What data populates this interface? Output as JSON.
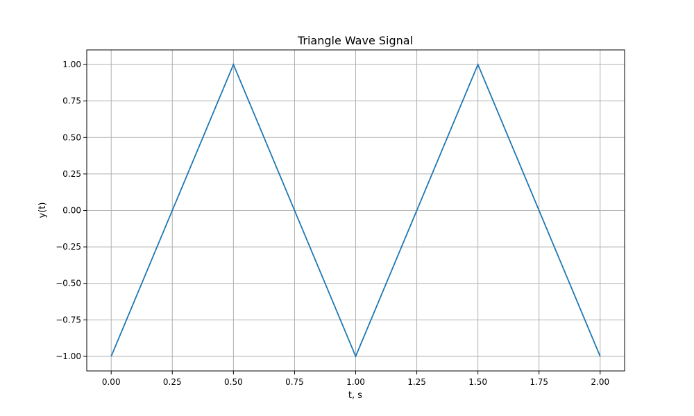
{
  "chart_data": {
    "type": "line",
    "title": "Triangle Wave Signal",
    "xlabel": "t, s",
    "ylabel": "y(t)",
    "xlim": [
      -0.1,
      2.1
    ],
    "ylim": [
      -1.1,
      1.1
    ],
    "xticks": [
      0.0,
      0.25,
      0.5,
      0.75,
      1.0,
      1.25,
      1.5,
      1.75,
      2.0
    ],
    "xtick_labels": [
      "0.00",
      "0.25",
      "0.50",
      "0.75",
      "1.00",
      "1.25",
      "1.50",
      "1.75",
      "2.00"
    ],
    "yticks": [
      1.0,
      0.75,
      0.5,
      0.25,
      0.0,
      -0.25,
      -0.5,
      -0.75,
      -1.0
    ],
    "ytick_labels": [
      "1.00",
      "0.75",
      "0.50",
      "0.25",
      "0.00",
      "−0.25",
      "−0.50",
      "−0.75",
      "−1.00"
    ],
    "grid": true,
    "series": [
      {
        "color": "#1f77b4",
        "x": [
          0.0,
          0.5,
          1.0,
          1.5,
          2.0
        ],
        "y": [
          -1.0,
          1.0,
          -1.0,
          1.0,
          -1.0
        ]
      }
    ]
  }
}
